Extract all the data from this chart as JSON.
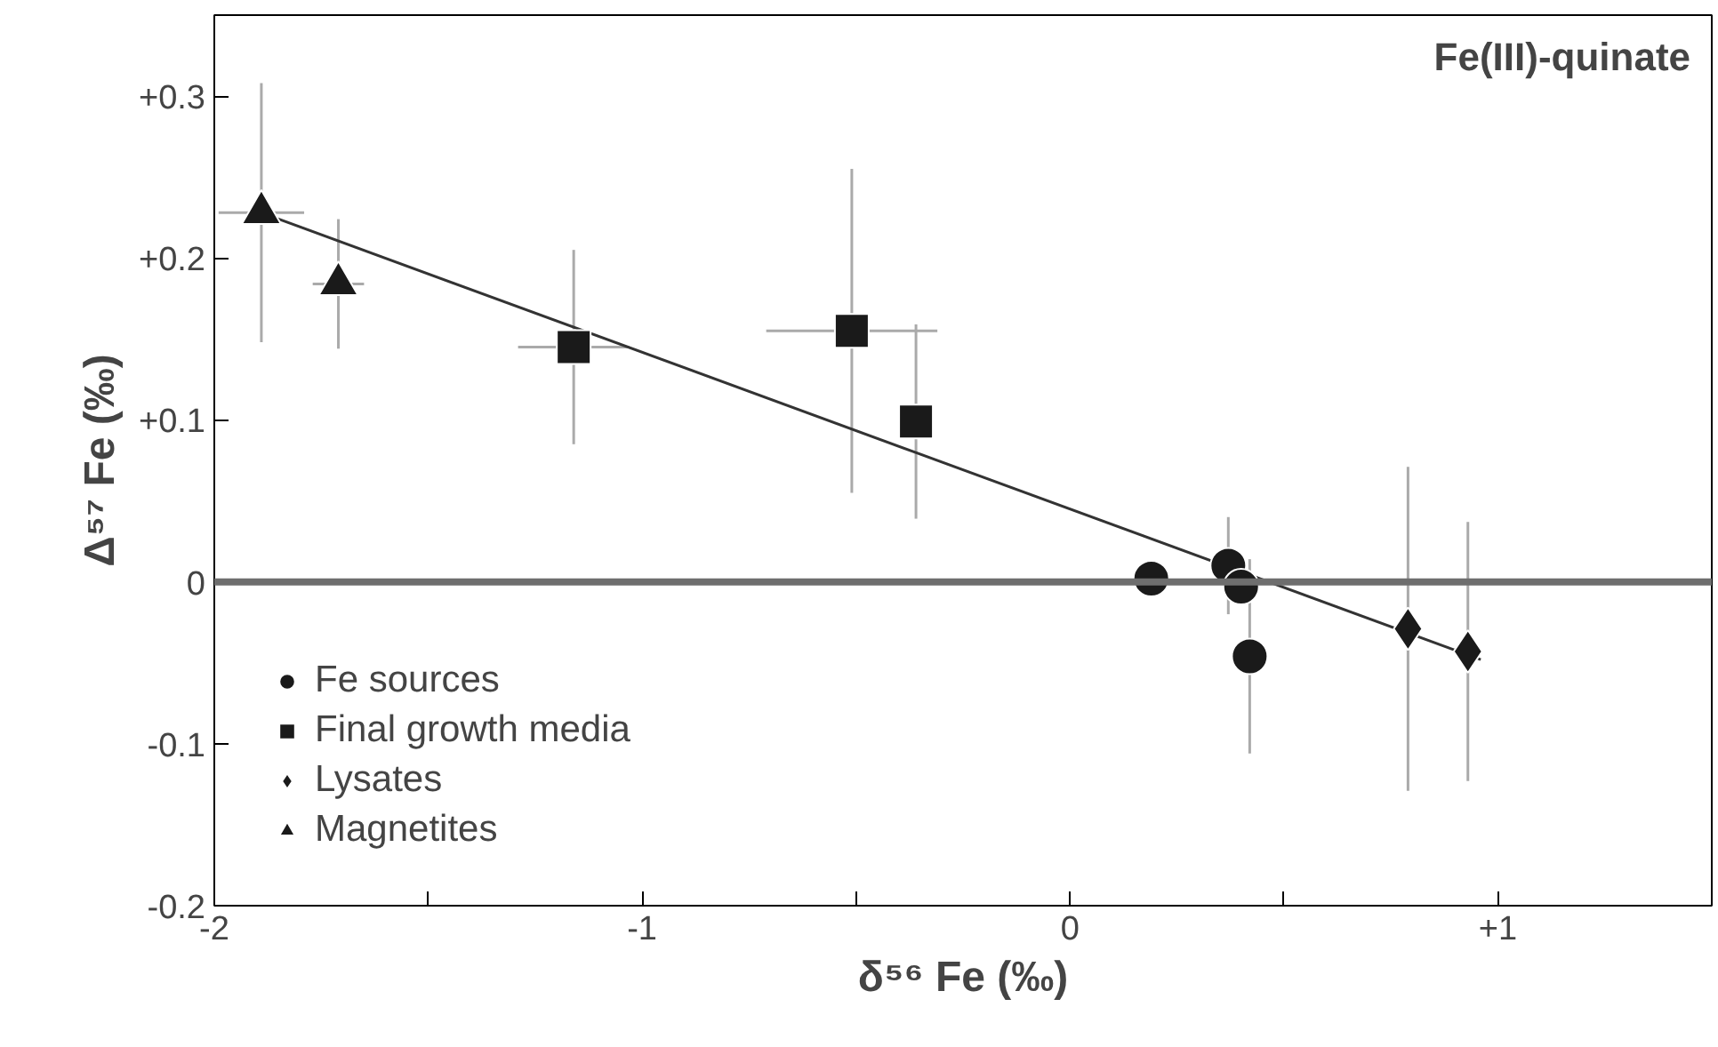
{
  "chart_data": {
    "type": "scatter",
    "title": "Fe(III)-quinate",
    "xlabel": "δ⁵⁶ Fe (‰)",
    "ylabel": "Δ⁵⁷ Fe (‰)",
    "xlim": [
      -2,
      1.5
    ],
    "ylim": [
      -0.2,
      0.35
    ],
    "xticks": [
      -2,
      {
        "value": -1.5,
        "label": null
      },
      -1,
      {
        "value": -0.5,
        "label": null
      },
      0,
      {
        "value": 0.5,
        "label": null
      },
      {
        "value": 1,
        "label": "+1"
      }
    ],
    "yticks": [
      -0.2,
      -0.1,
      0,
      {
        "value": 0.1,
        "label": "+0.1"
      },
      {
        "value": 0.2,
        "label": "+0.2"
      },
      {
        "value": 0.3,
        "label": "+0.3"
      }
    ],
    "grid": false,
    "legend": "bottom left",
    "ref_lines": [
      {
        "axis": "y",
        "value": 0,
        "color": "#6e6e6e"
      }
    ],
    "series": [
      {
        "name": "Fe sources",
        "color": "#1a1a1a",
        "marker": "circle",
        "x": [
          0.19,
          0.37,
          0.4,
          0.42
        ],
        "values": [
          0.002,
          0.01,
          -0.003,
          -0.046
        ],
        "errors": [
          null,
          0.03,
          null,
          0.06
        ]
      },
      {
        "name": "Final growth media",
        "color": "#1a1a1a",
        "marker": "square",
        "x": [
          -1.16,
          -0.51,
          -0.36
        ],
        "values": [
          0.145,
          0.155,
          0.099
        ],
        "errors": [
          0.06,
          0.1,
          0.06
        ],
        "xerrors": [
          0.13,
          0.2,
          null
        ]
      },
      {
        "name": "Lysates",
        "color": "#1a1a1a",
        "marker": "diamond",
        "x": [
          0.79,
          0.93
        ],
        "values": [
          -0.029,
          -0.043
        ],
        "errors": [
          0.1,
          0.08
        ]
      },
      {
        "name": "Magnetites",
        "color": "#1a1a1a",
        "marker": "triangle",
        "x": [
          -1.89,
          -1.71
        ],
        "values": [
          0.228,
          0.184
        ],
        "errors": [
          0.08,
          0.04
        ],
        "xerrors": [
          0.1,
          0.06
        ]
      },
      {
        "type": "line",
        "color": "#333333",
        "x": [
          -1.88,
          0.96
        ],
        "values": [
          0.227,
          -0.048
        ]
      }
    ]
  }
}
